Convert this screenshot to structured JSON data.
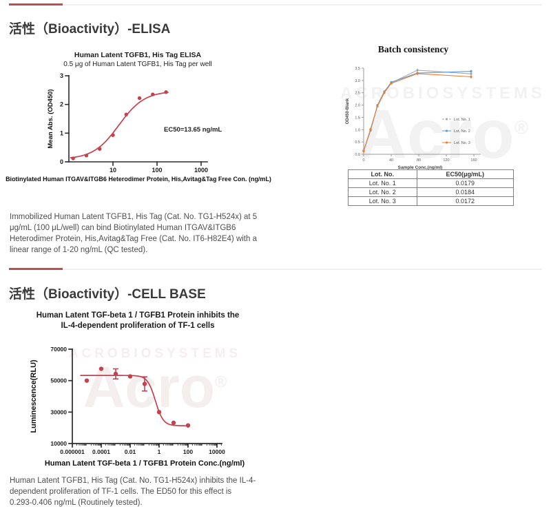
{
  "colors": {
    "accent_red": "#bf4d52",
    "curve_red": "#c6414e",
    "divider_gray": "#efefef",
    "batch_gray": "#a6a6a6",
    "batch_blue": "#5b9bd5",
    "batch_orange": "#ed7d31"
  },
  "watermark": {
    "top": "ACROBIOSYSTEMS",
    "big": "Acro",
    "sup": "®"
  },
  "section_elisa": {
    "heading": "活性（Bioactivity）-ELISA",
    "paragraph_lines": [
      "Immobilized Human Latent TGFB1, His Tag (Cat. No. TG1-H524x) at 5",
      "μg/mL (100 μL/well) can bind Biotinylated Human ITGAV&ITGB6",
      "Heterodimer Protein, His,Avitag&Tag Free (Cat. No. IT6-H82E4) with a",
      "linear range of 1-20 ng/mL (QC tested)."
    ],
    "lot_table": {
      "headers": [
        "Lot. No.",
        "EC50(μg/mL)"
      ],
      "rows": [
        [
          "Lot. No. 1",
          "0.0179"
        ],
        [
          "Lot. No. 2",
          "0.0184"
        ],
        [
          "Lot. No. 3",
          "0.0172"
        ]
      ]
    }
  },
  "section_cell": {
    "heading": "活性（Bioactivity）-CELL BASE",
    "paragraph_lines": [
      "Human Latent TGFB1, His Tag (Cat. No. TG1-H524x) inhibits the IL-4-",
      "dependent proliferation of TF-1 cells. The ED50 for this effect is",
      "0.293-0.406 ng/mL (Routinely tested)."
    ]
  },
  "chart_data": [
    {
      "id": "elisa",
      "type": "scatter",
      "x_scale": "log",
      "title": "Human Latent TGFB1, His Tag ELISA",
      "subtitle": "0.5 μg of Human Latent TGFB1, His Tag per well",
      "xlabel": "Biotinylated Human ITGAV&ITGB6 Heterodimer Protein, His,Avitag&Tag Free Con. (ng/mL)",
      "ylabel": "Mean Abs. (OD450)",
      "annotation": "EC50=13.65 ng/mL",
      "color": "#c6414e",
      "ylim": [
        0,
        3
      ],
      "x_ticks": [
        {
          "v": 10,
          "label": "10"
        },
        {
          "v": 100,
          "label": "100"
        },
        {
          "v": 1000,
          "label": "1000"
        }
      ],
      "y_ticks": [
        {
          "v": 0,
          "label": "0"
        },
        {
          "v": 1,
          "label": "1"
        },
        {
          "v": 2,
          "label": "2"
        },
        {
          "v": 3,
          "label": "3"
        }
      ],
      "points": {
        "x": [
          1.25,
          2.5,
          5,
          10,
          20,
          40,
          80,
          160
        ],
        "y": [
          0.12,
          0.22,
          0.45,
          0.93,
          1.65,
          2.22,
          2.35,
          2.43
        ],
        "err": [
          0,
          0,
          0,
          0,
          0,
          0,
          0,
          0
        ]
      },
      "fit": {
        "type": "4pl",
        "dir": "up",
        "bottom": 0.09,
        "top": 2.47,
        "ec50": 13.65,
        "hill": 1.5
      }
    },
    {
      "id": "batch",
      "type": "line",
      "title": "Batch consistency",
      "xlabel": "Sample Conc.(ng/ml)",
      "ylabel": "OD450-Blank",
      "xlim": [
        0,
        170
      ],
      "ylim": [
        0,
        3.5
      ],
      "x_ticks": [
        {
          "v": 0,
          "label": "0"
        },
        {
          "v": 40,
          "label": "40"
        },
        {
          "v": 80,
          "label": "80"
        },
        {
          "v": 120,
          "label": "120"
        },
        {
          "v": 160,
          "label": "160"
        }
      ],
      "y_ticks": [
        {
          "v": 0,
          "label": "0.0"
        },
        {
          "v": 0.5,
          "label": "0.5"
        },
        {
          "v": 1,
          "label": "1.0"
        },
        {
          "v": 1.5,
          "label": "1.5"
        },
        {
          "v": 2,
          "label": "2.0"
        },
        {
          "v": 2.5,
          "label": "2.5"
        },
        {
          "v": 3,
          "label": "3.0"
        },
        {
          "v": 3.5,
          "label": "3.5"
        }
      ],
      "x": [
        0,
        10,
        20,
        30,
        40,
        78,
        156
      ],
      "series": [
        {
          "name": "Lot. No. 1",
          "color": "#a6a6a6",
          "values": [
            0.15,
            1.0,
            2.0,
            2.56,
            2.9,
            3.42,
            3.27
          ]
        },
        {
          "name": "Lot. No. 2",
          "color": "#5b9bd5",
          "values": [
            0.13,
            0.97,
            1.97,
            2.52,
            2.93,
            3.3,
            3.37
          ]
        },
        {
          "name": "Lot. No. 3",
          "color": "#ed7d31",
          "values": [
            0.12,
            1.02,
            1.95,
            2.5,
            2.88,
            3.28,
            3.15
          ]
        }
      ],
      "legend_position": "right-middle"
    },
    {
      "id": "cell",
      "type": "scatter",
      "x_scale": "log",
      "title": [
        "Human Latent TGF-beta 1 / TGFB1 Protein inhibits the",
        "IL-4-dependent proliferation of TF-1 cells"
      ],
      "xlabel": "Human Latent TGF-beta 1 / TGFB1 Protein Conc.(ng/ml)",
      "ylabel": "Luminescence(RLU)",
      "color": "#c6414e",
      "ylim": [
        10000,
        70000
      ],
      "x_ticks": [
        {
          "v": 1e-06,
          "label": "0.000001"
        },
        {
          "v": 0.0001,
          "label": "0.0001"
        },
        {
          "v": 0.01,
          "label": "0.01"
        },
        {
          "v": 1,
          "label": "1"
        },
        {
          "v": 100,
          "label": "100"
        },
        {
          "v": 10000,
          "label": "10000"
        }
      ],
      "y_ticks": [
        {
          "v": 10000,
          "label": "10000"
        },
        {
          "v": 30000,
          "label": "30000"
        },
        {
          "v": 50000,
          "label": "50000"
        },
        {
          "v": 70000,
          "label": "70000"
        }
      ],
      "points": {
        "x": [
          1e-05,
          0.0001,
          0.001,
          0.01,
          0.1,
          1,
          10,
          100
        ],
        "y": [
          50000,
          57500,
          54300,
          52700,
          47900,
          30000,
          23200,
          21500
        ],
        "err": [
          0,
          0,
          3200,
          0,
          4500,
          0,
          0,
          0
        ]
      },
      "fit": {
        "type": "4pl",
        "dir": "down",
        "bottom": 21300,
        "top": 53300,
        "ec50": 0.55,
        "hill": 1.6
      }
    }
  ]
}
